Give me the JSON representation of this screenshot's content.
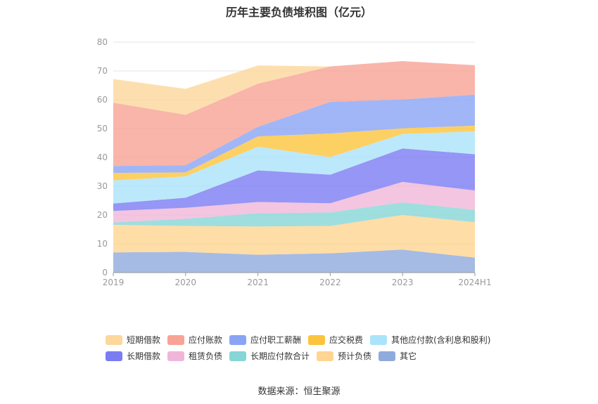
{
  "title": "历年主要负债堆积图（亿元）",
  "source": "数据来源：恒生聚源",
  "chart_data": {
    "type": "area",
    "stacked": true,
    "categories": [
      "2019",
      "2020",
      "2021",
      "2022",
      "2023",
      "2024H1"
    ],
    "ylim": [
      0,
      80
    ],
    "yticks": [
      0,
      10,
      20,
      30,
      40,
      50,
      60,
      70,
      80
    ],
    "grid": true,
    "legend_position": "bottom",
    "series": [
      {
        "name": "其它",
        "color": "#8faadc",
        "values": [
          7.0,
          7.2,
          6.2,
          6.7,
          8.0,
          5.2
        ]
      },
      {
        "name": "预计负债",
        "color": "#ffd591",
        "values": [
          9.6,
          9.0,
          9.8,
          9.5,
          12.0,
          12.3
        ]
      },
      {
        "name": "长期应付款合计",
        "color": "#87d6d6",
        "values": [
          0.8,
          2.5,
          4.6,
          4.7,
          4.4,
          4.3
        ]
      },
      {
        "name": "租赁负债",
        "color": "#f0b6d8",
        "values": [
          4.0,
          3.8,
          3.9,
          3.2,
          7.1,
          6.7
        ]
      },
      {
        "name": "长期借款",
        "color": "#7b7cf2",
        "values": [
          2.6,
          3.5,
          11.0,
          9.9,
          11.6,
          12.6
        ]
      },
      {
        "name": "其他应付款(含利息和股利)",
        "color": "#aae4fa",
        "values": [
          8.0,
          7.4,
          8.2,
          6.1,
          5.0,
          7.9
        ]
      },
      {
        "name": "应交税费",
        "color": "#fcc43c",
        "values": [
          2.6,
          1.4,
          3.6,
          8.2,
          2.0,
          2.0
        ]
      },
      {
        "name": "应付职工薪酬",
        "color": "#8aa4f5",
        "values": [
          2.4,
          2.5,
          3.3,
          11.0,
          10.0,
          10.8
        ]
      },
      {
        "name": "应付账款",
        "color": "#f8a395",
        "values": [
          22.0,
          17.5,
          15.0,
          12.3,
          13.3,
          10.2
        ]
      },
      {
        "name": "短期借款",
        "color": "#fdd79b",
        "values": [
          8.2,
          9.0,
          6.3,
          0.0,
          0.0,
          0.0
        ]
      }
    ],
    "legend_order": [
      "短期借款",
      "应付账款",
      "应付职工薪酬",
      "应交税费",
      "其他应付款(含利息和股利)",
      "长期借款",
      "租赁负债",
      "长期应付款合计",
      "预计负债",
      "其它"
    ]
  }
}
